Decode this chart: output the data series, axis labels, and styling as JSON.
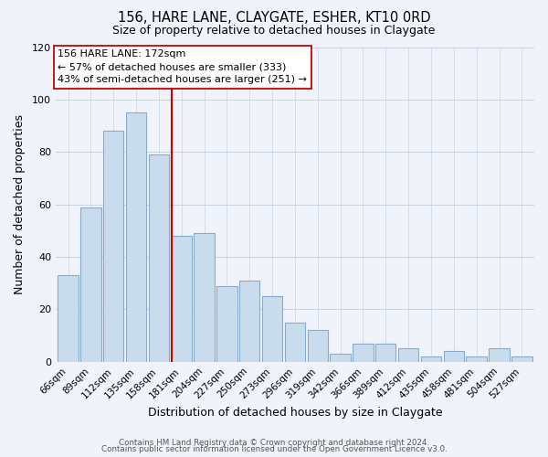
{
  "title": "156, HARE LANE, CLAYGATE, ESHER, KT10 0RD",
  "subtitle": "Size of property relative to detached houses in Claygate",
  "xlabel": "Distribution of detached houses by size in Claygate",
  "ylabel": "Number of detached properties",
  "bar_color": "#c8dcee",
  "bar_edge_color": "#88aacc",
  "categories": [
    "66sqm",
    "89sqm",
    "112sqm",
    "135sqm",
    "158sqm",
    "181sqm",
    "204sqm",
    "227sqm",
    "250sqm",
    "273sqm",
    "296sqm",
    "319sqm",
    "342sqm",
    "366sqm",
    "389sqm",
    "412sqm",
    "435sqm",
    "458sqm",
    "481sqm",
    "504sqm",
    "527sqm"
  ],
  "values": [
    33,
    59,
    88,
    95,
    79,
    48,
    49,
    29,
    31,
    25,
    15,
    12,
    3,
    7,
    7,
    5,
    2,
    4,
    2,
    5,
    2
  ],
  "vline_color": "#cc0000",
  "annotation_title": "156 HARE LANE: 172sqm",
  "annotation_line1": "← 57% of detached houses are smaller (333)",
  "annotation_line2": "43% of semi-detached houses are larger (251) →",
  "annotation_box_color": "#ffffff",
  "annotation_box_edge": "#cc0000",
  "ylim": [
    0,
    120
  ],
  "yticks": [
    0,
    20,
    40,
    60,
    80,
    100,
    120
  ],
  "footer_line1": "Contains HM Land Registry data © Crown copyright and database right 2024.",
  "footer_line2": "Contains public sector information licensed under the Open Government Licence v3.0.",
  "bg_color": "#f0f4fa",
  "grid_color": "#c8d4e4"
}
